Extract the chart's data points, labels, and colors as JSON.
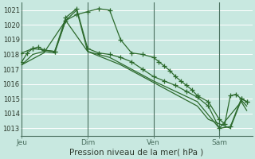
{
  "xlabel": "Pression niveau de la mer( hPa )",
  "bg_color": "#c8e8e0",
  "grid_color": "#aed4cc",
  "line_color": "#2d6a2d",
  "ylim": [
    1012.5,
    1021.5
  ],
  "yticks": [
    1013,
    1014,
    1015,
    1016,
    1017,
    1018,
    1019,
    1020,
    1021
  ],
  "day_labels": [
    "Jeu",
    "Dim",
    "Ven",
    "Sam"
  ],
  "day_positions": [
    0,
    3,
    6,
    9
  ],
  "vline_positions": [
    0,
    3,
    6,
    9
  ],
  "series1_x": [
    0.0,
    0.25,
    0.5,
    0.75,
    1.0,
    1.5,
    2.0,
    2.5,
    3.0,
    3.5,
    4.0,
    4.5,
    5.0,
    5.5,
    6.0,
    6.25,
    6.5,
    6.75,
    7.0,
    7.25,
    7.5,
    7.75,
    8.0,
    8.5,
    9.0,
    9.25,
    9.5,
    9.75,
    10.0,
    10.25
  ],
  "series1_y": [
    1017.5,
    1018.1,
    1018.4,
    1018.5,
    1018.3,
    1018.2,
    1020.3,
    1020.7,
    1020.9,
    1021.1,
    1021.0,
    1019.0,
    1018.1,
    1018.0,
    1017.8,
    1017.5,
    1017.2,
    1016.9,
    1016.5,
    1016.2,
    1015.9,
    1015.6,
    1015.2,
    1014.8,
    1013.6,
    1013.3,
    1015.2,
    1015.3,
    1015.0,
    1014.8
  ],
  "series2_x": [
    0.0,
    0.5,
    1.0,
    1.5,
    2.0,
    2.5,
    3.0,
    3.5,
    4.0,
    4.5,
    5.0,
    5.5,
    6.0,
    6.5,
    7.0,
    7.5,
    8.0,
    8.5,
    9.0,
    9.5,
    10.0,
    10.25
  ],
  "series2_y": [
    1018.1,
    1018.4,
    1018.3,
    1018.2,
    1020.5,
    1021.1,
    1018.4,
    1018.1,
    1018.0,
    1017.8,
    1017.5,
    1017.0,
    1016.5,
    1016.2,
    1015.9,
    1015.5,
    1015.1,
    1014.5,
    1013.0,
    1013.1,
    1015.0,
    1014.8
  ],
  "series3_x": [
    0.0,
    0.5,
    1.0,
    1.5,
    2.0,
    2.5,
    3.0,
    3.5,
    4.0,
    4.5,
    5.0,
    5.5,
    6.0,
    6.5,
    7.0,
    7.5,
    8.0,
    8.5,
    9.0,
    9.5,
    10.0,
    10.25
  ],
  "series3_y": [
    1017.3,
    1018.0,
    1018.2,
    1018.1,
    1020.3,
    1021.0,
    1018.2,
    1017.9,
    1017.6,
    1017.3,
    1016.9,
    1016.5,
    1016.1,
    1015.7,
    1015.3,
    1014.9,
    1014.5,
    1013.6,
    1013.3,
    1013.0,
    1014.9,
    1014.5
  ],
  "series4_x": [
    0.0,
    1.0,
    2.0,
    3.0,
    4.0,
    5.0,
    6.0,
    7.0,
    8.0,
    9.0,
    10.0,
    10.25
  ],
  "series4_y": [
    1017.3,
    1018.1,
    1020.3,
    1018.2,
    1017.8,
    1017.0,
    1016.2,
    1015.5,
    1014.8,
    1013.0,
    1014.8,
    1014.2
  ]
}
